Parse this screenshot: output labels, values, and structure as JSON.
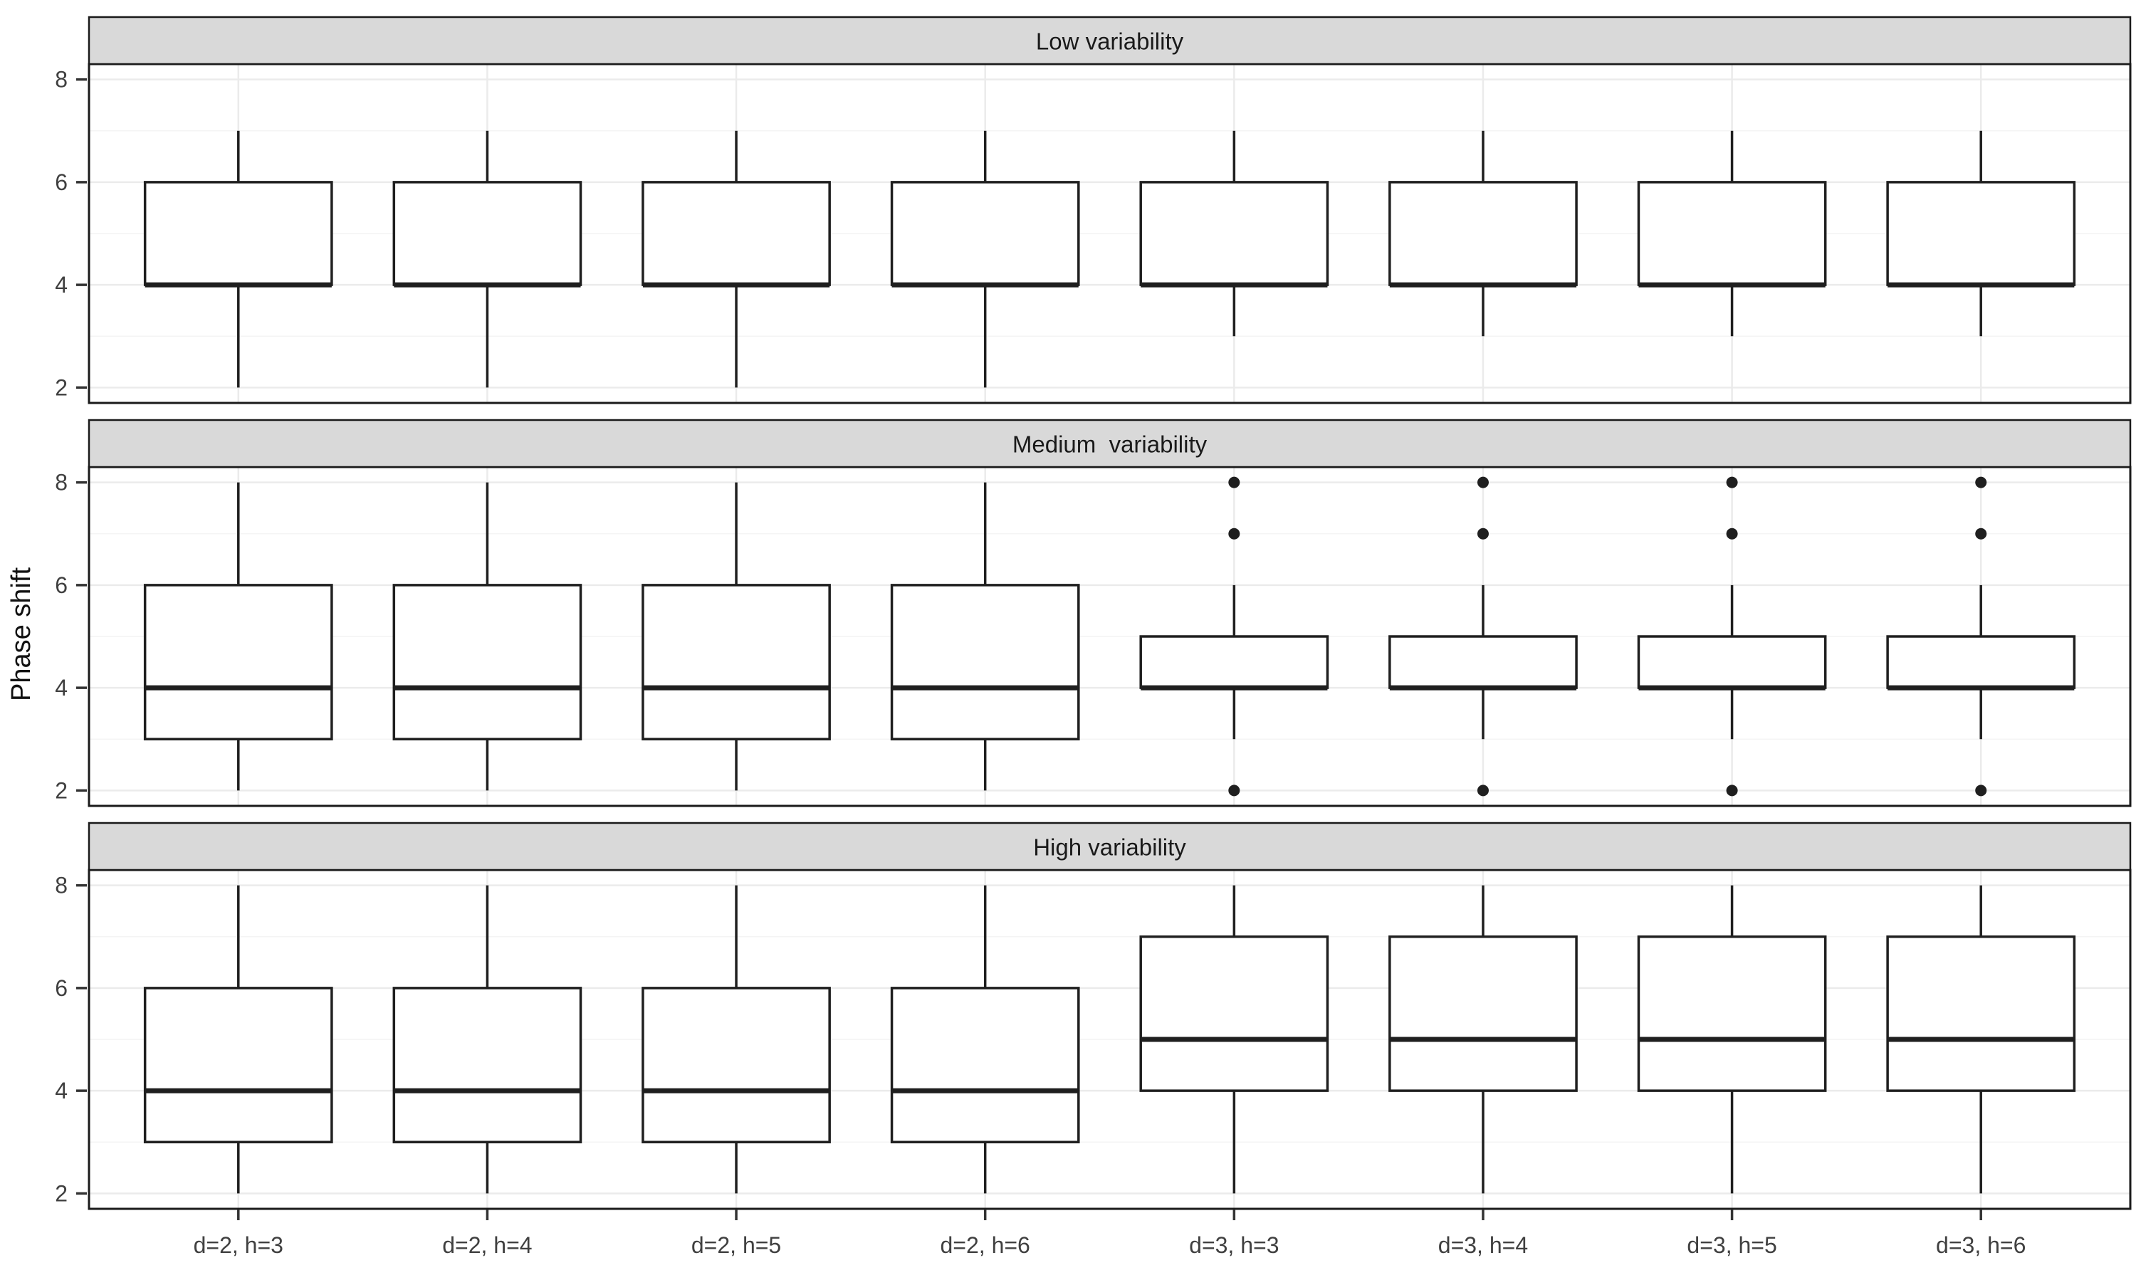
{
  "figure": {
    "ylabel": "Phase shift"
  },
  "chart_data": {
    "type": "boxplot",
    "ylabel": "Phase shift",
    "ylim": [
      1.7,
      8.3
    ],
    "y_major_ticks": [
      2,
      4,
      6,
      8
    ],
    "y_minor_gridlines": [
      3,
      5,
      7
    ],
    "grid": "on",
    "legend": "none",
    "categories": [
      "d=2, h=3",
      "d=2, h=4",
      "d=2, h=5",
      "d=2, h=6",
      "d=3, h=3",
      "d=3, h=4",
      "d=3, h=5",
      "d=3, h=6"
    ],
    "facets": [
      {
        "label": "Low variability",
        "boxes": [
          {
            "category": "d=2, h=3",
            "whisker_low": 2,
            "q1": 4,
            "median": 4,
            "q3": 6,
            "whisker_high": 7,
            "outliers": []
          },
          {
            "category": "d=2, h=4",
            "whisker_low": 2,
            "q1": 4,
            "median": 4,
            "q3": 6,
            "whisker_high": 7,
            "outliers": []
          },
          {
            "category": "d=2, h=5",
            "whisker_low": 2,
            "q1": 4,
            "median": 4,
            "q3": 6,
            "whisker_high": 7,
            "outliers": []
          },
          {
            "category": "d=2, h=6",
            "whisker_low": 2,
            "q1": 4,
            "median": 4,
            "q3": 6,
            "whisker_high": 7,
            "outliers": []
          },
          {
            "category": "d=3, h=3",
            "whisker_low": 3,
            "q1": 4,
            "median": 4,
            "q3": 6,
            "whisker_high": 7,
            "outliers": []
          },
          {
            "category": "d=3, h=4",
            "whisker_low": 3,
            "q1": 4,
            "median": 4,
            "q3": 6,
            "whisker_high": 7,
            "outliers": []
          },
          {
            "category": "d=3, h=5",
            "whisker_low": 3,
            "q1": 4,
            "median": 4,
            "q3": 6,
            "whisker_high": 7,
            "outliers": []
          },
          {
            "category": "d=3, h=6",
            "whisker_low": 3,
            "q1": 4,
            "median": 4,
            "q3": 6,
            "whisker_high": 7,
            "outliers": []
          }
        ]
      },
      {
        "label": "Medium  variability",
        "boxes": [
          {
            "category": "d=2, h=3",
            "whisker_low": 2,
            "q1": 3,
            "median": 4,
            "q3": 6,
            "whisker_high": 8,
            "outliers": []
          },
          {
            "category": "d=2, h=4",
            "whisker_low": 2,
            "q1": 3,
            "median": 4,
            "q3": 6,
            "whisker_high": 8,
            "outliers": []
          },
          {
            "category": "d=2, h=5",
            "whisker_low": 2,
            "q1": 3,
            "median": 4,
            "q3": 6,
            "whisker_high": 8,
            "outliers": []
          },
          {
            "category": "d=2, h=6",
            "whisker_low": 2,
            "q1": 3,
            "median": 4,
            "q3": 6,
            "whisker_high": 8,
            "outliers": []
          },
          {
            "category": "d=3, h=3",
            "whisker_low": 3,
            "q1": 4,
            "median": 4,
            "q3": 5,
            "whisker_high": 6,
            "outliers": [
              2,
              7,
              8
            ]
          },
          {
            "category": "d=3, h=4",
            "whisker_low": 3,
            "q1": 4,
            "median": 4,
            "q3": 5,
            "whisker_high": 6,
            "outliers": [
              2,
              7,
              8
            ]
          },
          {
            "category": "d=3, h=5",
            "whisker_low": 3,
            "q1": 4,
            "median": 4,
            "q3": 5,
            "whisker_high": 6,
            "outliers": [
              2,
              7,
              8
            ]
          },
          {
            "category": "d=3, h=6",
            "whisker_low": 3,
            "q1": 4,
            "median": 4,
            "q3": 5,
            "whisker_high": 6,
            "outliers": [
              2,
              7,
              8
            ]
          }
        ]
      },
      {
        "label": "High variability",
        "boxes": [
          {
            "category": "d=2, h=3",
            "whisker_low": 2,
            "q1": 3,
            "median": 4,
            "q3": 6,
            "whisker_high": 8,
            "outliers": []
          },
          {
            "category": "d=2, h=4",
            "whisker_low": 2,
            "q1": 3,
            "median": 4,
            "q3": 6,
            "whisker_high": 8,
            "outliers": []
          },
          {
            "category": "d=2, h=5",
            "whisker_low": 2,
            "q1": 3,
            "median": 4,
            "q3": 6,
            "whisker_high": 8,
            "outliers": []
          },
          {
            "category": "d=2, h=6",
            "whisker_low": 2,
            "q1": 3,
            "median": 4,
            "q3": 6,
            "whisker_high": 8,
            "outliers": []
          },
          {
            "category": "d=3, h=3",
            "whisker_low": 2,
            "q1": 4,
            "median": 5,
            "q3": 7,
            "whisker_high": 8,
            "outliers": []
          },
          {
            "category": "d=3, h=4",
            "whisker_low": 2,
            "q1": 4,
            "median": 5,
            "q3": 7,
            "whisker_high": 8,
            "outliers": []
          },
          {
            "category": "d=3, h=5",
            "whisker_low": 2,
            "q1": 4,
            "median": 5,
            "q3": 7,
            "whisker_high": 8,
            "outliers": []
          },
          {
            "category": "d=3, h=6",
            "whisker_low": 2,
            "q1": 4,
            "median": 5,
            "q3": 7,
            "whisker_high": 8,
            "outliers": []
          }
        ]
      }
    ],
    "colors": {
      "strip_fill": "#d9d9d9",
      "strip_text": "#1a1a1a",
      "panel_border": "#1a1a1a",
      "box_stroke": "#1f1f1f",
      "box_fill": "#ffffff",
      "outlier_fill": "#1f1f1f",
      "grid_major": "#ebebeb",
      "grid_minor": "#f4f4f4",
      "tick_mark": "#333333",
      "tick_label": "#404040",
      "axis_title": "#111111",
      "background": "#ffffff"
    }
  }
}
